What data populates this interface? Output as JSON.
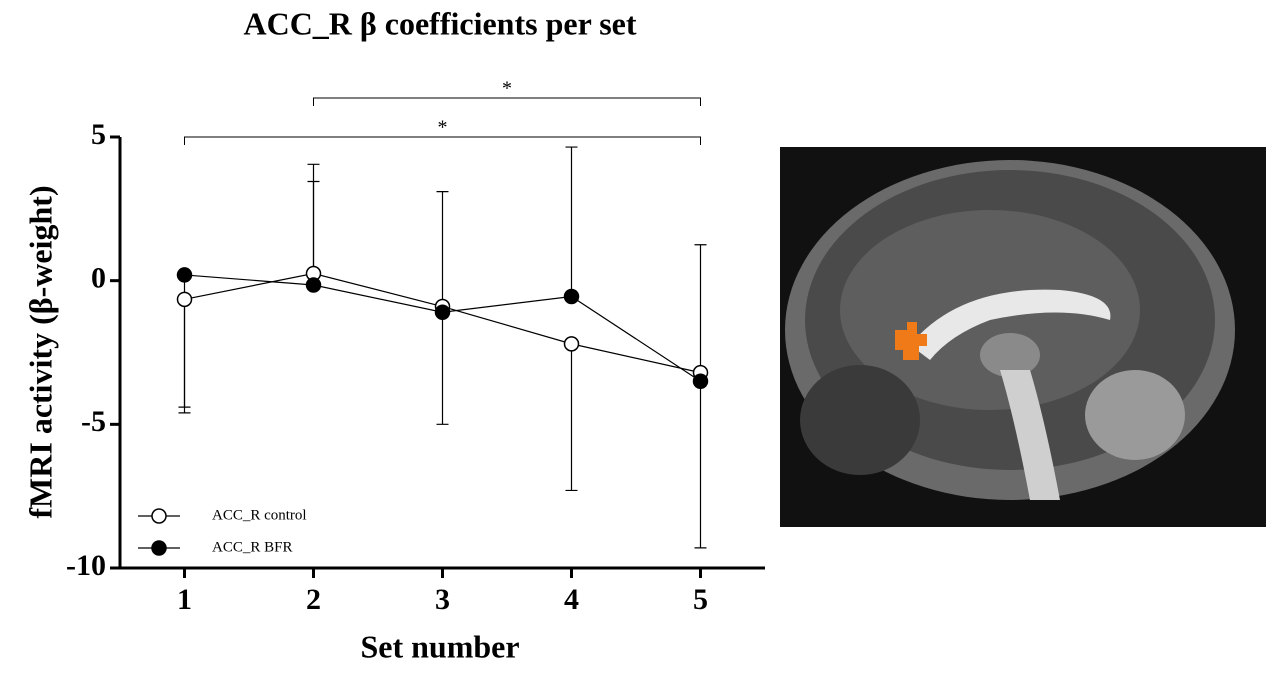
{
  "chart_data": {
    "type": "line",
    "title": "ACC_R β coefficients per set",
    "x_label": "Set number",
    "y_label": "fMRI activity (β-weight)",
    "x": [
      1,
      2,
      3,
      4,
      5
    ],
    "xlim": [
      0.5,
      5.5
    ],
    "xticks": [
      1,
      2,
      3,
      4,
      5
    ],
    "ylim": [
      -10,
      5
    ],
    "yticks": [
      -10,
      -5,
      0,
      5
    ],
    "legend": "lower left",
    "series": [
      {
        "name": "ACC_R control",
        "color": "#000000",
        "marker": "open",
        "values": [
          -0.65,
          0.25,
          -0.9,
          -2.2,
          -3.2
        ],
        "error_lower": [
          -4.6,
          null,
          -5.0,
          -7.3,
          null
        ],
        "error_upper": [
          null,
          4.05,
          null,
          null,
          1.25
        ]
      },
      {
        "name": "ACC_R BFR",
        "color": "#000000",
        "marker": "filled",
        "values": [
          0.2,
          -0.15,
          -1.1,
          -0.55,
          -3.5
        ],
        "error_lower": [
          -4.4,
          null,
          null,
          null,
          -9.3
        ],
        "error_upper": [
          null,
          3.45,
          3.1,
          4.65,
          null
        ]
      }
    ],
    "annotations": [
      {
        "label": "*",
        "x1": 2,
        "x2": 5
      },
      {
        "label": "*",
        "x1": 1,
        "x2": 5
      }
    ]
  }
}
